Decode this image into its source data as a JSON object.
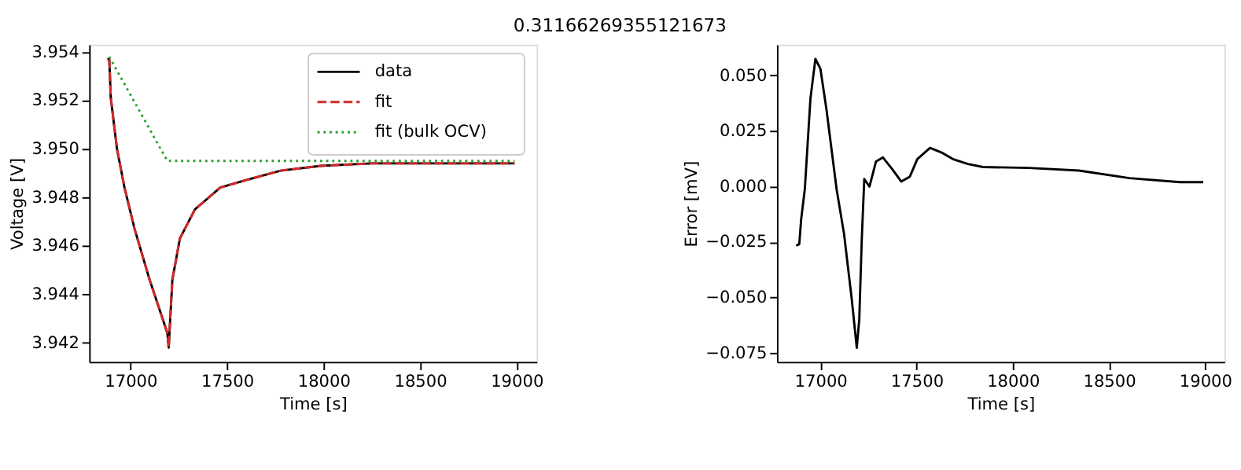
{
  "chart_data": [
    {
      "type": "line",
      "title": "0.31166269355121673",
      "xlabel": "Time [s]",
      "ylabel": "Voltage [V]",
      "legend": "top right",
      "grid": false,
      "marker": "none",
      "xlim": [
        16786,
        19104
      ],
      "ylim": [
        3.94121,
        3.9543
      ],
      "xticks": [
        17000,
        17500,
        18000,
        18500,
        19000
      ],
      "yticks": [
        3.942,
        3.944,
        3.946,
        3.948,
        {
          "value": 3.95,
          "label": "3.950"
        },
        3.952,
        3.954
      ],
      "series": [
        {
          "name": "data",
          "color": "#000000",
          "line_style": "solid",
          "x": [
            16880,
            16890,
            16898,
            16930,
            16969,
            17021,
            17099,
            17191,
            17198,
            17206,
            17217,
            17256,
            17334,
            17465,
            17595,
            17778,
            17987,
            18248,
            18509,
            18990
          ],
          "values": [
            3.9537,
            3.9537,
            3.9521,
            3.95,
            3.9484,
            3.9467,
            3.9446,
            3.9424,
            3.9418,
            3.943,
            3.9446,
            3.9463,
            3.9475,
            3.9484,
            3.9487,
            3.9491,
            3.9493,
            3.9494,
            3.9494,
            3.9494
          ]
        },
        {
          "name": "fit",
          "color": "#d62728",
          "line_style": "dashed",
          "x": [
            16890,
            16898,
            16930,
            16969,
            17021,
            17099,
            17191,
            17198,
            17206,
            17217,
            17256,
            17334,
            17465,
            17595,
            17778,
            17987,
            18248,
            18509,
            18990
          ],
          "values": [
            3.9537,
            3.9521,
            3.95,
            3.9484,
            3.9467,
            3.9446,
            3.9424,
            3.9418,
            3.943,
            3.9446,
            3.9463,
            3.9475,
            3.9484,
            3.9487,
            3.9491,
            3.9493,
            3.9494,
            3.9494,
            3.9494
          ]
        },
        {
          "name": "fit (bulk OCV)",
          "color": "#2ca02c",
          "line_style": "dotted",
          "x": [
            16890,
            17191,
            18990
          ],
          "values": [
            3.9538,
            3.9495,
            3.9495
          ]
        }
      ]
    },
    {
      "type": "line",
      "xlabel": "Time [s]",
      "ylabel": "Error [mV]",
      "grid": false,
      "marker": "none",
      "xlim": [
        16774,
        19100
      ],
      "ylim": [
        -0.079,
        0.0638
      ],
      "xticks": [
        17000,
        17500,
        18000,
        18500,
        19000
      ],
      "yticks": [
        {
          "value": -0.075,
          "label": "−0.075"
        },
        {
          "value": -0.05,
          "label": "−0.050"
        },
        {
          "value": -0.025,
          "label": "−0.025"
        },
        {
          "value": 0,
          "label": "0.000"
        },
        {
          "value": 0.025,
          "label": "0.025"
        },
        {
          "value": 0.05,
          "label": "0.050"
        }
      ],
      "series": [
        {
          "color": "#000000",
          "line_style": "solid",
          "x": [
            16874,
            16890,
            16900,
            16919,
            16948,
            16974,
            17000,
            17031,
            17084,
            17123,
            17163,
            17189,
            17202,
            17215,
            17228,
            17255,
            17289,
            17325,
            17373,
            17420,
            17465,
            17504,
            17570,
            17635,
            17688,
            17766,
            17845,
            18081,
            18344,
            18606,
            18869,
            18990
          ],
          "values": [
            -0.0267,
            -0.026,
            -0.0148,
            -0.0012,
            0.0394,
            0.0574,
            0.0529,
            0.0349,
            -0.0012,
            -0.0215,
            -0.0509,
            -0.0727,
            -0.0599,
            -0.0238,
            0.0033,
            -0.0001,
            0.0112,
            0.013,
            0.0078,
            0.0022,
            0.0044,
            0.0123,
            0.0173,
            0.015,
            0.0123,
            0.0101,
            0.0087,
            0.0083,
            0.0071,
            0.0037,
            0.0019,
            0.0019
          ]
        }
      ]
    }
  ]
}
